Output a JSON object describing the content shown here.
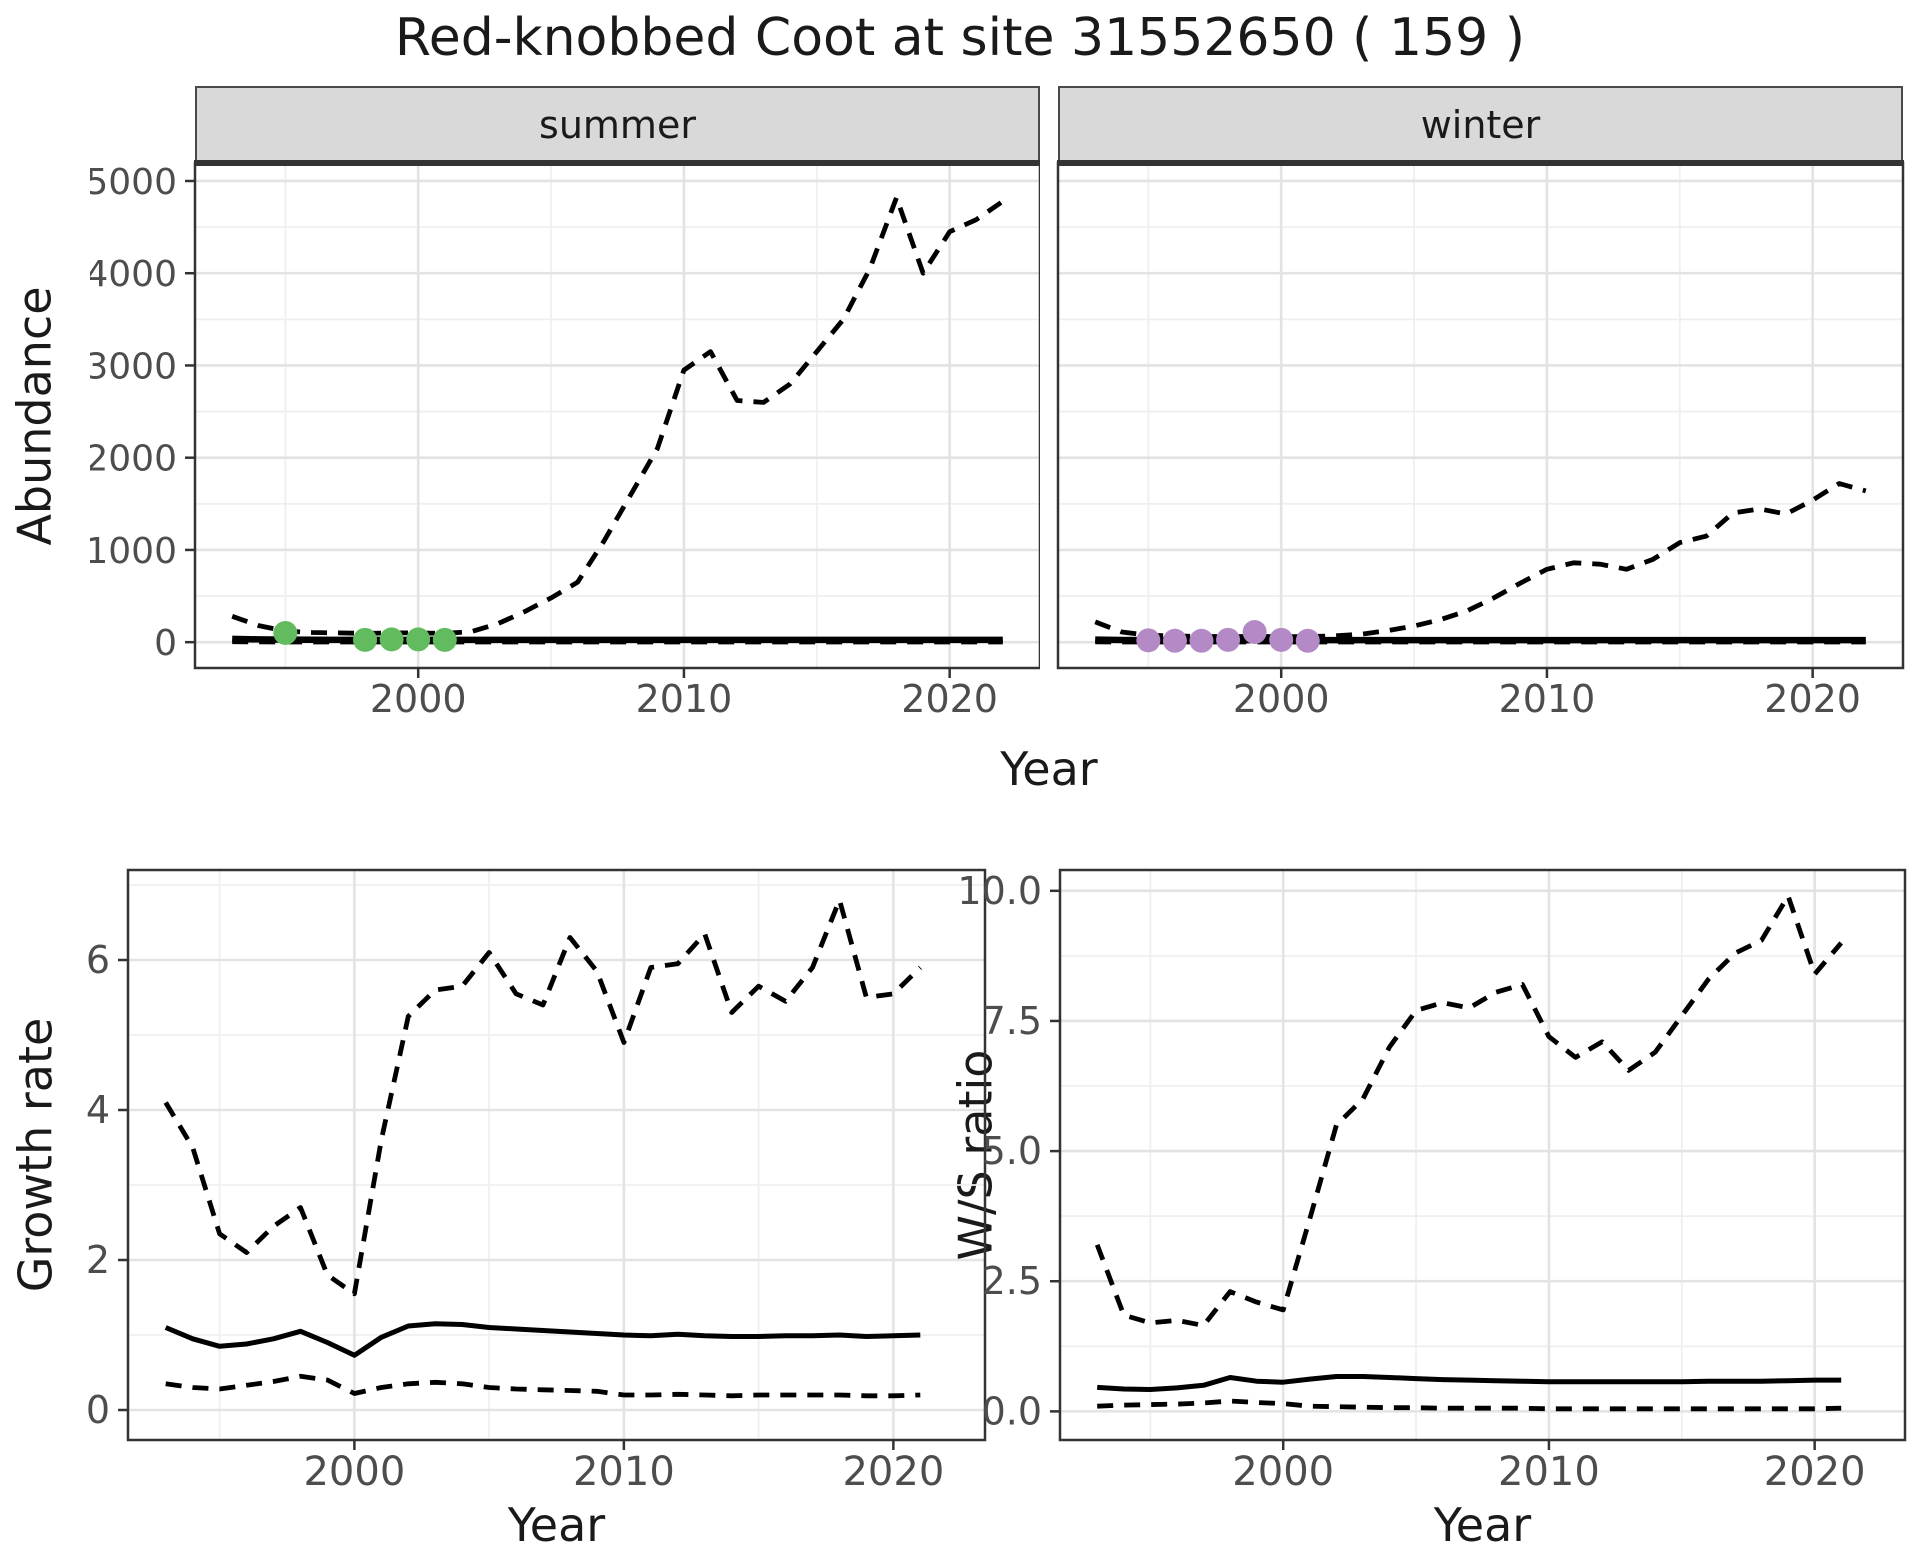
{
  "title": "Red-knobbed Coot at site 31552650 ( 159 )",
  "axes": {
    "abundance": "Abundance",
    "year": "Year",
    "growth": "Growth rate",
    "ws": "W/S ratio"
  },
  "facets": {
    "summer": "summer",
    "winter": "winter"
  },
  "colors": {
    "points_summer": "#62BB5E",
    "points_winter": "#B48AC6",
    "line": "#000000",
    "grid_major": "#E3E3E3",
    "grid_minor": "#EFEFEF",
    "panel_border": "#333333",
    "strip_bg": "#D9D9D9",
    "tick_text": "#4D4D4D",
    "title_text": "#1A1A1A"
  },
  "chart_data": [
    {
      "id": "abundance-summer",
      "type": "line",
      "facet_label": "summer",
      "xlabel": "Year",
      "ylabel": "Abundance",
      "xlim": [
        1991.6,
        2023.4
      ],
      "ylim": [
        -280,
        5195
      ],
      "xticks": {
        "values": [
          2000,
          2010,
          2020
        ],
        "labels": [
          "2000",
          "2010",
          "2020"
        ]
      },
      "yticks": {
        "values": [
          0,
          1000,
          2000,
          3000,
          4000,
          5000
        ],
        "labels": [
          "0",
          "1000",
          "2000",
          "3000",
          "4000",
          "5000"
        ]
      },
      "show_y_labels": true,
      "top_accent": true,
      "x": [
        1993,
        1994,
        1995,
        1996,
        1997,
        1998,
        1999,
        2000,
        2001,
        2002,
        2003,
        2004,
        2005,
        2006,
        2007,
        2008,
        2009,
        2010,
        2011,
        2012,
        2013,
        2014,
        2015,
        2016,
        2017,
        2018,
        2019,
        2020,
        2021,
        2022
      ],
      "series": [
        {
          "name": "upper_ci",
          "style": "dashed",
          "values": [
            280,
            180,
            120,
            105,
            100,
            95,
            100,
            100,
            95,
            115,
            200,
            330,
            480,
            650,
            1100,
            1600,
            2100,
            2950,
            3150,
            2620,
            2600,
            2800,
            3150,
            3500,
            4050,
            4820,
            4000,
            4450,
            4580,
            4780
          ]
        },
        {
          "name": "lower_ci",
          "style": "dashed",
          "values": [
            5,
            3,
            2,
            2,
            2,
            2,
            2,
            2,
            2,
            2,
            2,
            2,
            2,
            2,
            2,
            2,
            2,
            2,
            2,
            2,
            2,
            2,
            2,
            2,
            2,
            2,
            2,
            2,
            2,
            2
          ]
        },
        {
          "name": "mean",
          "style": "solid",
          "values": [
            35,
            30,
            28,
            26,
            25,
            25,
            25,
            25,
            25,
            25,
            25,
            25,
            25,
            25,
            25,
            25,
            25,
            25,
            25,
            25,
            25,
            25,
            25,
            25,
            25,
            25,
            25,
            25,
            25,
            25
          ]
        }
      ],
      "points": {
        "label": "observed summer counts",
        "color_key": "points_summer",
        "x": [
          1995,
          1998,
          1999,
          2000,
          2001
        ],
        "y": [
          100,
          25,
          30,
          30,
          25
        ]
      }
    },
    {
      "id": "abundance-winter",
      "type": "line",
      "facet_label": "winter",
      "xlabel": "Year",
      "ylabel": "Abundance",
      "xlim": [
        1991.6,
        2023.4
      ],
      "ylim": [
        -280,
        5195
      ],
      "xticks": {
        "values": [
          2000,
          2010,
          2020
        ],
        "labels": [
          "2000",
          "2010",
          "2020"
        ]
      },
      "yticks": {
        "values": [
          0,
          1000,
          2000,
          3000,
          4000,
          5000
        ],
        "labels": [
          "0",
          "1000",
          "2000",
          "3000",
          "4000",
          "5000"
        ]
      },
      "show_y_labels": false,
      "top_accent": true,
      "x": [
        1993,
        1994,
        1995,
        1996,
        1997,
        1998,
        1999,
        2000,
        2001,
        2002,
        2003,
        2004,
        2005,
        2006,
        2007,
        2008,
        2009,
        2010,
        2011,
        2012,
        2013,
        2014,
        2015,
        2016,
        2017,
        2018,
        2019,
        2020,
        2021,
        2022
      ],
      "series": [
        {
          "name": "upper_ci",
          "style": "dashed",
          "values": [
            220,
            110,
            75,
            68,
            62,
            60,
            62,
            60,
            60,
            68,
            85,
            125,
            175,
            245,
            340,
            480,
            640,
            790,
            860,
            845,
            790,
            900,
            1080,
            1150,
            1400,
            1445,
            1390,
            1540,
            1720,
            1640
          ]
        },
        {
          "name": "lower_ci",
          "style": "dashed",
          "values": [
            4,
            2,
            2,
            2,
            2,
            2,
            2,
            2,
            2,
            2,
            2,
            2,
            2,
            2,
            2,
            2,
            2,
            2,
            2,
            2,
            2,
            2,
            2,
            2,
            2,
            2,
            2,
            2,
            2,
            2
          ]
        },
        {
          "name": "mean",
          "style": "solid",
          "values": [
            28,
            24,
            22,
            22,
            22,
            22,
            22,
            22,
            22,
            22,
            22,
            22,
            22,
            22,
            22,
            22,
            22,
            22,
            22,
            22,
            22,
            22,
            22,
            22,
            22,
            22,
            22,
            22,
            22,
            22
          ]
        }
      ],
      "points": {
        "label": "observed winter counts",
        "color_key": "points_winter",
        "x": [
          1995,
          1996,
          1997,
          1998,
          1999,
          2000,
          2001
        ],
        "y": [
          20,
          15,
          15,
          25,
          110,
          25,
          15
        ]
      }
    },
    {
      "id": "growth-rate",
      "type": "line",
      "facet_label": "",
      "xlabel": "Year",
      "ylabel": "Growth rate",
      "xlim": [
        1991.6,
        2023.4
      ],
      "ylim": [
        -0.4,
        7.2
      ],
      "xticks": {
        "values": [
          2000,
          2010,
          2020
        ],
        "labels": [
          "2000",
          "2010",
          "2020"
        ]
      },
      "yticks": {
        "values": [
          0,
          2,
          4,
          6
        ],
        "labels": [
          "0",
          "2",
          "4",
          "6"
        ]
      },
      "show_y_labels": true,
      "top_accent": false,
      "x": [
        1993,
        1994,
        1995,
        1996,
        1997,
        1998,
        1999,
        2000,
        2001,
        2002,
        2003,
        2004,
        2005,
        2006,
        2007,
        2008,
        2009,
        2010,
        2011,
        2012,
        2013,
        2014,
        2015,
        2016,
        2017,
        2018,
        2019,
        2020,
        2021
      ],
      "series": [
        {
          "name": "upper_ci",
          "style": "dashed",
          "values": [
            4.1,
            3.5,
            2.35,
            2.1,
            2.45,
            2.7,
            1.8,
            1.55,
            3.6,
            5.25,
            5.6,
            5.65,
            6.1,
            5.55,
            5.4,
            6.3,
            5.85,
            4.9,
            5.9,
            5.95,
            6.35,
            5.3,
            5.65,
            5.45,
            5.9,
            6.8,
            5.5,
            5.55,
            5.9
          ]
        },
        {
          "name": "lower_ci",
          "style": "dashed",
          "values": [
            0.35,
            0.3,
            0.28,
            0.33,
            0.38,
            0.45,
            0.4,
            0.22,
            0.3,
            0.35,
            0.37,
            0.35,
            0.3,
            0.28,
            0.27,
            0.26,
            0.25,
            0.2,
            0.2,
            0.21,
            0.2,
            0.19,
            0.2,
            0.2,
            0.2,
            0.2,
            0.19,
            0.19,
            0.2
          ]
        },
        {
          "name": "mean",
          "style": "solid",
          "values": [
            1.1,
            0.95,
            0.85,
            0.88,
            0.95,
            1.05,
            0.9,
            0.73,
            0.97,
            1.12,
            1.15,
            1.14,
            1.1,
            1.08,
            1.06,
            1.04,
            1.02,
            1.0,
            0.99,
            1.01,
            0.99,
            0.98,
            0.98,
            0.99,
            0.99,
            1.0,
            0.98,
            0.99,
            1.0
          ]
        }
      ],
      "points": null
    },
    {
      "id": "ws-ratio",
      "type": "line",
      "facet_label": "",
      "xlabel": "Year",
      "ylabel": "W/S ratio",
      "xlim": [
        1991.6,
        2023.4
      ],
      "ylim": [
        -0.55,
        10.4
      ],
      "xticks": {
        "values": [
          2000,
          2010,
          2020
        ],
        "labels": [
          "2000",
          "2010",
          "2020"
        ]
      },
      "yticks": {
        "values": [
          0,
          2.5,
          5,
          7.5,
          10
        ],
        "labels": [
          "0.0",
          "2.5",
          "5.0",
          "7.5",
          "10.0"
        ]
      },
      "show_y_labels": true,
      "top_accent": false,
      "x": [
        1993,
        1994,
        1995,
        1996,
        1997,
        1998,
        1999,
        2000,
        2001,
        2002,
        2003,
        2004,
        2005,
        2006,
        2007,
        2008,
        2009,
        2010,
        2011,
        2012,
        2013,
        2014,
        2015,
        2016,
        2017,
        2018,
        2019,
        2020,
        2021
      ],
      "series": [
        {
          "name": "upper_ci",
          "style": "dashed",
          "values": [
            3.2,
            1.85,
            1.7,
            1.75,
            1.65,
            2.3,
            2.1,
            1.95,
            3.7,
            5.5,
            6.0,
            7.0,
            7.7,
            7.85,
            7.75,
            8.05,
            8.2,
            7.2,
            6.8,
            7.1,
            6.55,
            6.9,
            7.6,
            8.3,
            8.8,
            9.05,
            9.9,
            8.4,
            9.0
          ]
        },
        {
          "name": "lower_ci",
          "style": "dashed",
          "values": [
            0.1,
            0.12,
            0.13,
            0.14,
            0.16,
            0.2,
            0.17,
            0.15,
            0.1,
            0.09,
            0.08,
            0.07,
            0.07,
            0.06,
            0.06,
            0.06,
            0.06,
            0.05,
            0.05,
            0.05,
            0.05,
            0.05,
            0.05,
            0.05,
            0.05,
            0.05,
            0.05,
            0.05,
            0.06
          ]
        },
        {
          "name": "mean",
          "style": "solid",
          "values": [
            0.46,
            0.43,
            0.42,
            0.45,
            0.5,
            0.65,
            0.58,
            0.56,
            0.62,
            0.67,
            0.67,
            0.65,
            0.63,
            0.61,
            0.6,
            0.59,
            0.58,
            0.57,
            0.57,
            0.57,
            0.57,
            0.57,
            0.57,
            0.58,
            0.58,
            0.58,
            0.59,
            0.6,
            0.6
          ]
        }
      ],
      "points": null
    }
  ]
}
